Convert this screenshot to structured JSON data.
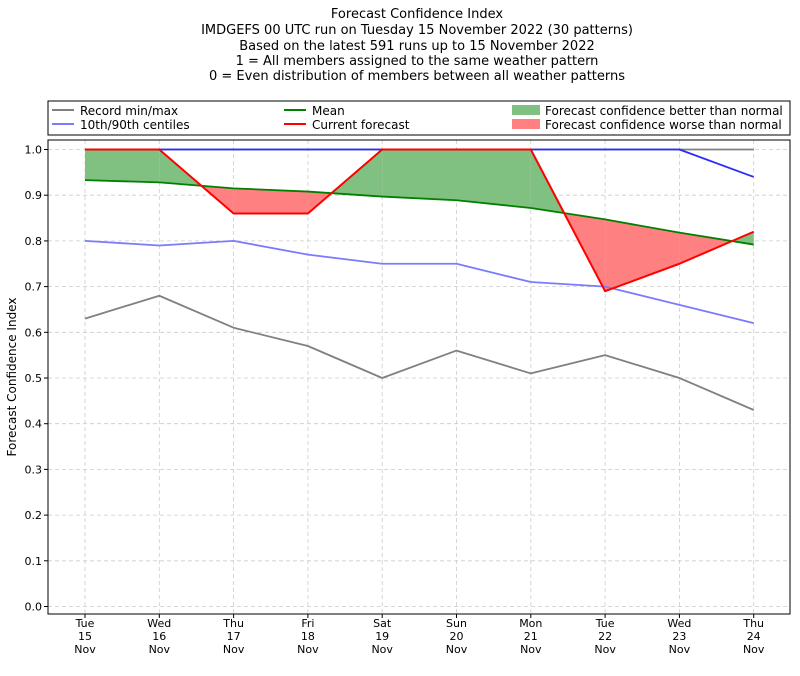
{
  "chart_data": {
    "type": "line",
    "title_lines": [
      "Forecast Confidence Index",
      "IMDGEFS 00 UTC run on Tuesday 15 November 2022 (30 patterns)",
      "Based on the latest 591 runs up to 15 November 2022",
      "1 = All members assigned to the same weather pattern",
      "0 = Even distribution of members between all weather patterns"
    ],
    "ylabel": "Forecast Confidence Index",
    "ylim": [
      0,
      1
    ],
    "yticks": [
      0.0,
      0.1,
      0.2,
      0.3,
      0.4,
      0.5,
      0.6,
      0.7,
      0.8,
      0.9,
      1.0
    ],
    "ytick_labels": [
      "0.0",
      "0.1",
      "0.2",
      "0.3",
      "0.4",
      "0.5",
      "0.6",
      "0.7",
      "0.8",
      "0.9",
      "1.0"
    ],
    "grid": true,
    "legend_placement": "top",
    "categories": [
      [
        "Tue",
        "15",
        "Nov"
      ],
      [
        "Wed",
        "16",
        "Nov"
      ],
      [
        "Thu",
        "17",
        "Nov"
      ],
      [
        "Fri",
        "18",
        "Nov"
      ],
      [
        "Sat",
        "19",
        "Nov"
      ],
      [
        "Sun",
        "20",
        "Nov"
      ],
      [
        "Mon",
        "21",
        "Nov"
      ],
      [
        "Tue",
        "22",
        "Nov"
      ],
      [
        "Wed",
        "23",
        "Nov"
      ],
      [
        "Thu",
        "24",
        "Nov"
      ]
    ],
    "series": {
      "record_max": [
        1.0,
        1.0,
        1.0,
        1.0,
        1.0,
        1.0,
        1.0,
        1.0,
        1.0,
        1.0
      ],
      "record_min": [
        0.63,
        0.68,
        0.61,
        0.57,
        0.5,
        0.56,
        0.51,
        0.55,
        0.5,
        0.43
      ],
      "p90": [
        1.0,
        1.0,
        1.0,
        1.0,
        1.0,
        1.0,
        1.0,
        1.0,
        1.0,
        0.94
      ],
      "p10": [
        0.8,
        0.79,
        0.8,
        0.77,
        0.75,
        0.75,
        0.71,
        0.7,
        0.66,
        0.62
      ],
      "mean": [
        0.933,
        0.928,
        0.915,
        0.908,
        0.897,
        0.889,
        0.872,
        0.847,
        0.818,
        0.792
      ],
      "current": [
        1.0,
        1.0,
        0.86,
        0.86,
        1.0,
        1.0,
        1.0,
        0.69,
        0.75,
        0.82
      ]
    },
    "legend": [
      {
        "label": "Record min/max",
        "kind": "line",
        "color": "#808080"
      },
      {
        "label": "Mean",
        "kind": "line",
        "color": "#008000"
      },
      {
        "label": "Forecast confidence better than normal",
        "kind": "patch",
        "color": "#80c080"
      },
      {
        "label": "10th/90th centiles",
        "kind": "line",
        "color": "#7b7bff"
      },
      {
        "label": "Current forecast",
        "kind": "line",
        "color": "#ff0000"
      },
      {
        "label": "Forecast confidence worse than normal",
        "kind": "patch",
        "color": "#ff8080"
      }
    ],
    "colors": {
      "record": "#808080",
      "centiles": "#7b7bff",
      "centile_top": "#2b2bff",
      "mean": "#008000",
      "current": "#ff0000",
      "better_fill": "#80c080",
      "worse_fill": "#ff8080",
      "grid": "#cccccc"
    }
  }
}
